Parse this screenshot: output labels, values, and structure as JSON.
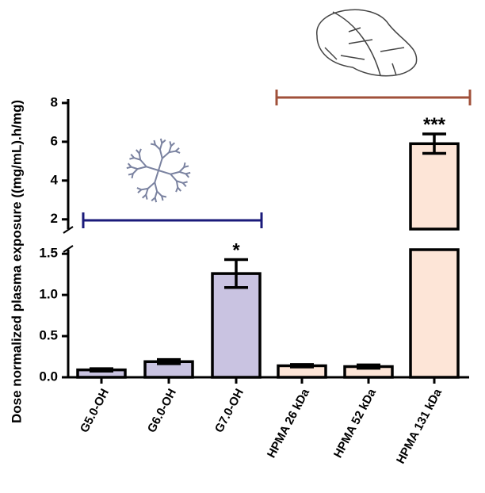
{
  "chart_data": {
    "type": "bar",
    "y_label": "Dose normalized plasma exposure ((mg/mL).h/mg)",
    "categories": [
      "G5.0-OH",
      "G6.0-OH",
      "G7.0-OH",
      "HPMA 26 kDa",
      "HPMA 52 kDa",
      "HPMA 131 kDa"
    ],
    "values": [
      0.09,
      0.19,
      1.26,
      0.14,
      0.13,
      5.9
    ],
    "errors": [
      0.015,
      0.025,
      0.17,
      0.015,
      0.02,
      0.5
    ],
    "colors": [
      "#c9c3e1",
      "#c9c3e1",
      "#c9c3e1",
      "#fde5d7",
      "#fde5d7",
      "#fde5d7"
    ],
    "segments": [
      {
        "ylim": [
          0,
          1.55
        ],
        "yticks": [
          {
            "value": 0,
            "label": "0.0"
          },
          0.5,
          {
            "value": 1,
            "label": "1.0"
          },
          1.5
        ]
      },
      {
        "ylim": [
          1.5,
          8.2
        ],
        "yticks": [
          2,
          4,
          6,
          8
        ]
      }
    ],
    "annotations": [
      {
        "category": "G7.0-OH",
        "text": "*"
      },
      {
        "category": "HPMA 131 kDa",
        "text": "***"
      }
    ]
  }
}
